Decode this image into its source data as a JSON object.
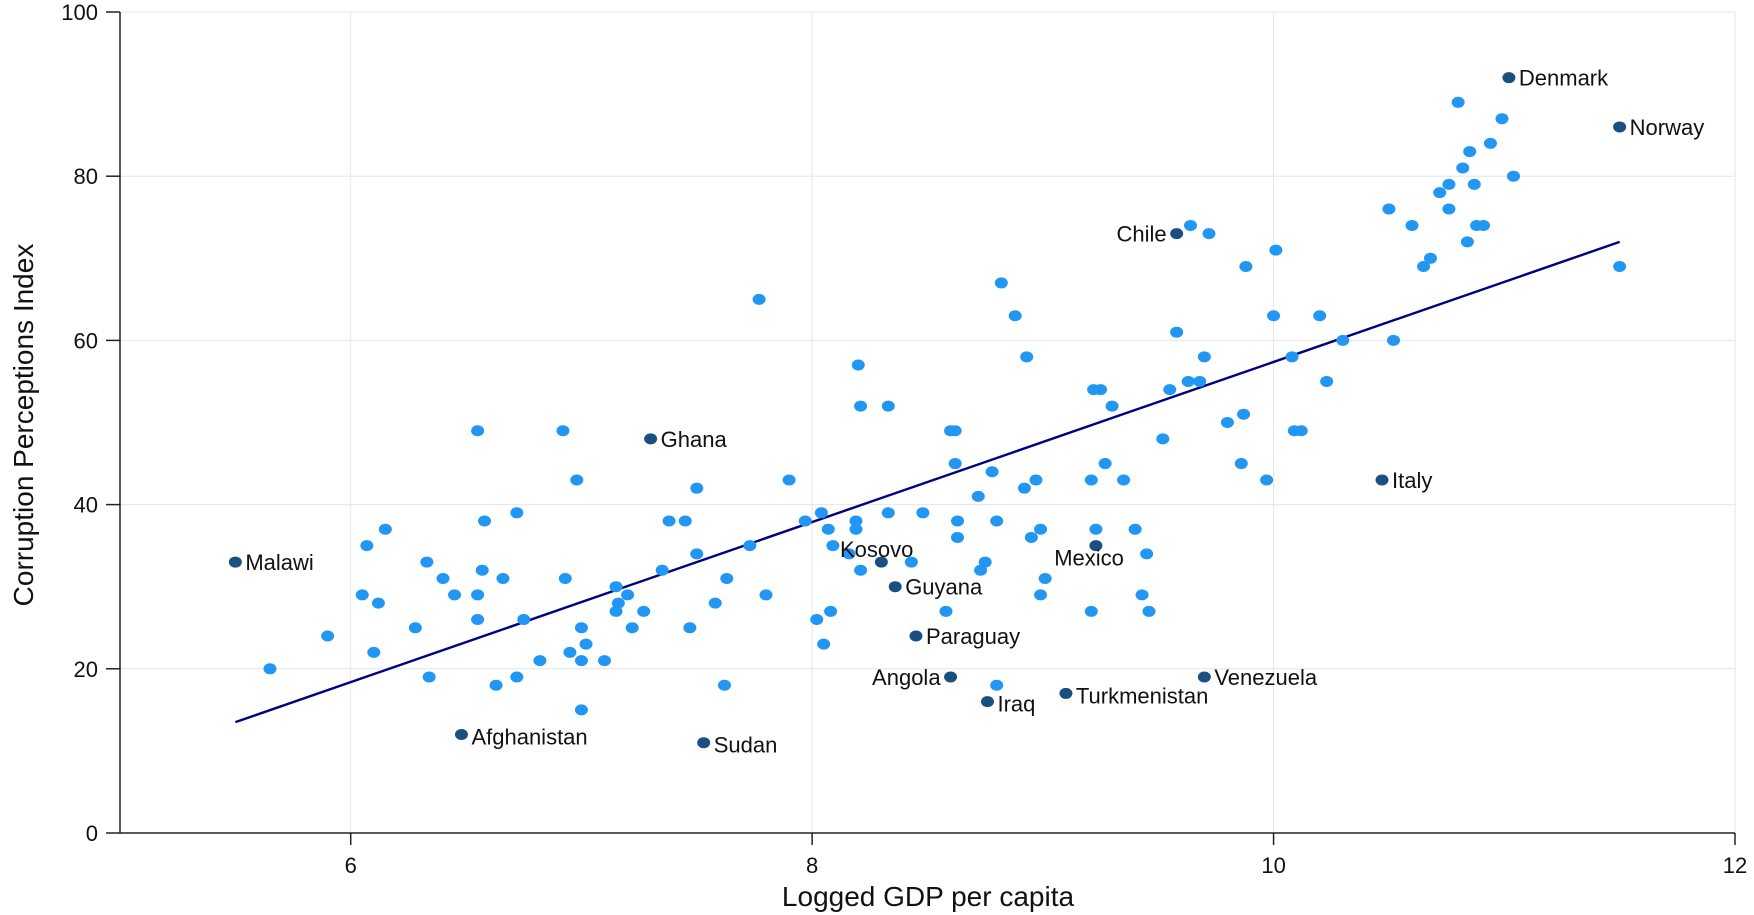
{
  "chart_data": {
    "type": "scatter",
    "title": "",
    "xlabel": "Logged GDP per capita",
    "ylabel": "Corruption Perceptions Index",
    "xlim": [
      5,
      12
    ],
    "ylim": [
      0,
      100
    ],
    "xticks": [
      6,
      8,
      10,
      12
    ],
    "yticks": [
      0,
      20,
      40,
      60,
      80,
      100
    ],
    "grid": true,
    "colors": {
      "points": "#2196f3",
      "highlighted": "#1a4f82",
      "fit_line": "#000080"
    },
    "fit_line": {
      "x": [
        5.5,
        11.5
      ],
      "y": [
        13.5,
        72
      ]
    },
    "points": [
      [
        5.65,
        20
      ],
      [
        5.9,
        24
      ],
      [
        6.05,
        29
      ],
      [
        6.07,
        35
      ],
      [
        6.1,
        22
      ],
      [
        6.12,
        28
      ],
      [
        6.15,
        37
      ],
      [
        6.28,
        25
      ],
      [
        6.33,
        33
      ],
      [
        6.34,
        19
      ],
      [
        6.4,
        31
      ],
      [
        6.45,
        29
      ],
      [
        6.55,
        49
      ],
      [
        6.55,
        29
      ],
      [
        6.55,
        26
      ],
      [
        6.57,
        32
      ],
      [
        6.58,
        38
      ],
      [
        6.63,
        18
      ],
      [
        6.66,
        31
      ],
      [
        6.72,
        19
      ],
      [
        6.72,
        39
      ],
      [
        6.75,
        26
      ],
      [
        6.82,
        21
      ],
      [
        6.92,
        49
      ],
      [
        6.93,
        31
      ],
      [
        6.95,
        22
      ],
      [
        6.98,
        43
      ],
      [
        7.0,
        25
      ],
      [
        7.0,
        21
      ],
      [
        7.0,
        15
      ],
      [
        7.02,
        23
      ],
      [
        7.1,
        21
      ],
      [
        7.15,
        30
      ],
      [
        7.15,
        27
      ],
      [
        7.16,
        28
      ],
      [
        7.2,
        29
      ],
      [
        7.22,
        25
      ],
      [
        7.27,
        27
      ],
      [
        7.35,
        32
      ],
      [
        7.38,
        38
      ],
      [
        7.45,
        38
      ],
      [
        7.47,
        25
      ],
      [
        7.5,
        42
      ],
      [
        7.5,
        34
      ],
      [
        7.58,
        28
      ],
      [
        7.62,
        18
      ],
      [
        7.63,
        31
      ],
      [
        7.73,
        35
      ],
      [
        7.77,
        65
      ],
      [
        7.8,
        29
      ],
      [
        7.9,
        43
      ],
      [
        7.97,
        38
      ],
      [
        8.02,
        26
      ],
      [
        8.04,
        39
      ],
      [
        8.05,
        23
      ],
      [
        8.07,
        37
      ],
      [
        8.08,
        27
      ],
      [
        8.09,
        35
      ],
      [
        8.16,
        34
      ],
      [
        8.19,
        37
      ],
      [
        8.19,
        38
      ],
      [
        8.2,
        57
      ],
      [
        8.21,
        52
      ],
      [
        8.21,
        32
      ],
      [
        8.33,
        39
      ],
      [
        8.33,
        52
      ],
      [
        8.43,
        33
      ],
      [
        8.48,
        39
      ],
      [
        8.58,
        27
      ],
      [
        8.6,
        49
      ],
      [
        8.62,
        45
      ],
      [
        8.62,
        49
      ],
      [
        8.63,
        38
      ],
      [
        8.63,
        36
      ],
      [
        8.72,
        41
      ],
      [
        8.73,
        32
      ],
      [
        8.75,
        33
      ],
      [
        8.78,
        44
      ],
      [
        8.8,
        38
      ],
      [
        8.8,
        18
      ],
      [
        8.82,
        67
      ],
      [
        8.88,
        63
      ],
      [
        8.92,
        42
      ],
      [
        8.93,
        58
      ],
      [
        8.95,
        36
      ],
      [
        8.97,
        43
      ],
      [
        8.99,
        29
      ],
      [
        8.99,
        37
      ],
      [
        9.01,
        31
      ],
      [
        9.21,
        27
      ],
      [
        9.21,
        43
      ],
      [
        9.22,
        54
      ],
      [
        9.23,
        37
      ],
      [
        9.25,
        54
      ],
      [
        9.27,
        45
      ],
      [
        9.3,
        52
      ],
      [
        9.35,
        43
      ],
      [
        9.4,
        37
      ],
      [
        9.43,
        29
      ],
      [
        9.45,
        34
      ],
      [
        9.46,
        27
      ],
      [
        9.52,
        48
      ],
      [
        9.55,
        54
      ],
      [
        9.58,
        61
      ],
      [
        9.63,
        55
      ],
      [
        9.64,
        74
      ],
      [
        9.68,
        55
      ],
      [
        9.7,
        58
      ],
      [
        9.72,
        73
      ],
      [
        9.8,
        50
      ],
      [
        9.86,
        45
      ],
      [
        9.87,
        51
      ],
      [
        9.88,
        69
      ],
      [
        9.97,
        43
      ],
      [
        10.0,
        63
      ],
      [
        10.01,
        71
      ],
      [
        10.08,
        58
      ],
      [
        10.09,
        49
      ],
      [
        10.12,
        49
      ],
      [
        10.2,
        63
      ],
      [
        10.23,
        55
      ],
      [
        10.3,
        60
      ],
      [
        10.5,
        76
      ],
      [
        10.52,
        60
      ],
      [
        10.6,
        74
      ],
      [
        10.65,
        69
      ],
      [
        10.68,
        70
      ],
      [
        10.72,
        78
      ],
      [
        10.76,
        79
      ],
      [
        10.76,
        76
      ],
      [
        10.8,
        89
      ],
      [
        10.82,
        81
      ],
      [
        10.84,
        72
      ],
      [
        10.85,
        83
      ],
      [
        10.87,
        79
      ],
      [
        10.88,
        74
      ],
      [
        10.91,
        74
      ],
      [
        10.94,
        84
      ],
      [
        10.99,
        87
      ],
      [
        11.04,
        80
      ],
      [
        11.5,
        69
      ]
    ],
    "labeled_points": [
      {
        "name": "Denmark",
        "x": 11.02,
        "y": 92,
        "side": "right"
      },
      {
        "name": "Norway",
        "x": 11.5,
        "y": 86,
        "side": "right"
      },
      {
        "name": "Chile",
        "x": 9.58,
        "y": 73,
        "side": "left"
      },
      {
        "name": "Ghana",
        "x": 7.3,
        "y": 48,
        "side": "right"
      },
      {
        "name": "Italy",
        "x": 10.47,
        "y": 43,
        "side": "right"
      },
      {
        "name": "Malawi",
        "x": 5.5,
        "y": 33,
        "side": "right"
      },
      {
        "name": "Kosovo",
        "x": 8.3,
        "y": 33,
        "side": "above-left"
      },
      {
        "name": "Mexico",
        "x": 9.23,
        "y": 35,
        "side": "below-left"
      },
      {
        "name": "Guyana",
        "x": 8.36,
        "y": 30,
        "side": "right"
      },
      {
        "name": "Paraguay",
        "x": 8.45,
        "y": 24,
        "side": "right"
      },
      {
        "name": "Angola",
        "x": 8.6,
        "y": 19,
        "side": "left"
      },
      {
        "name": "Venezuela",
        "x": 9.7,
        "y": 19,
        "side": "right"
      },
      {
        "name": "Turkmenistan",
        "x": 9.1,
        "y": 17,
        "side": "right"
      },
      {
        "name": "Iraq",
        "x": 8.76,
        "y": 16,
        "side": "right"
      },
      {
        "name": "Afghanistan",
        "x": 6.48,
        "y": 12,
        "side": "right"
      },
      {
        "name": "Sudan",
        "x": 7.53,
        "y": 11,
        "side": "right"
      }
    ]
  }
}
